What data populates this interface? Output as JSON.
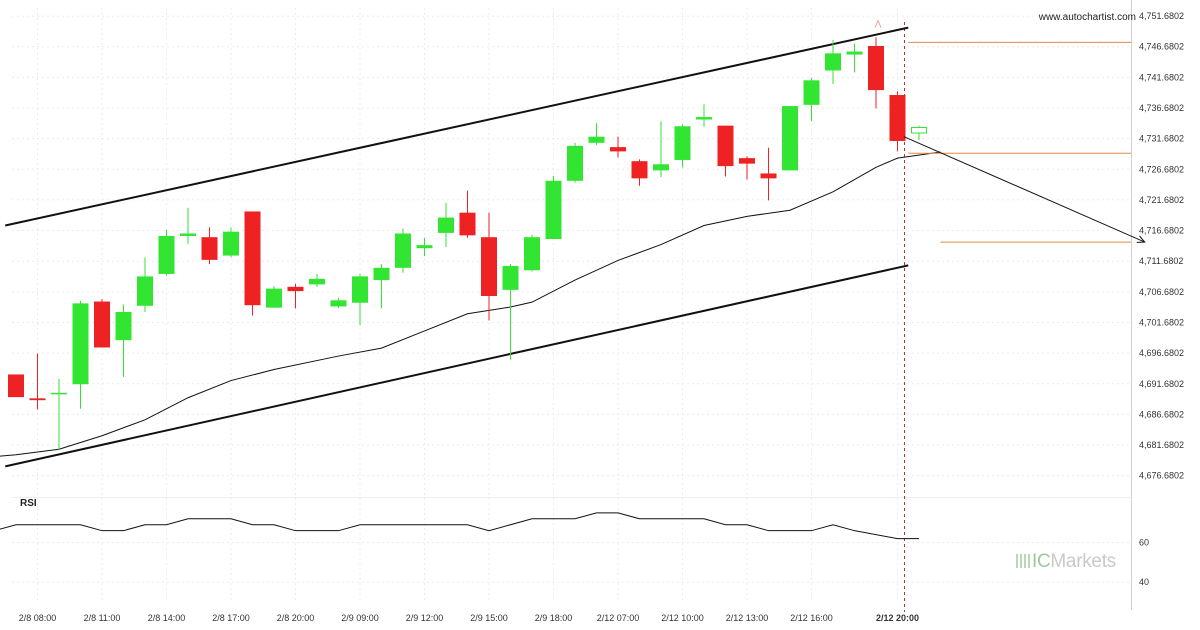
{
  "watermark": "www.autochartist.com",
  "rsi_label": "RSI",
  "brand": {
    "prefix": "IC",
    "suffix": "Markets"
  },
  "colors": {
    "up": "#33e533",
    "down": "#ee2222",
    "ma": "#111111",
    "level": "#e08a4a",
    "channel": "#111111"
  },
  "chart_data": {
    "type": "candlestick",
    "price_axis": {
      "ylim": [
        4673.2,
        4753.0
      ],
      "ticks": [
        "4,751.6802",
        "4,746.6802",
        "4,741.6802",
        "4,736.6802",
        "4,731.6802",
        "4,726.6802",
        "4,721.6802",
        "4,716.6802",
        "4,711.6802",
        "4,706.6802",
        "4,701.6802",
        "4,696.6802",
        "4,691.6802",
        "4,686.6802",
        "4,681.6802",
        "4,676.6802"
      ],
      "tick_values": [
        4751.6802,
        4746.6802,
        4741.6802,
        4736.6802,
        4731.6802,
        4726.6802,
        4721.6802,
        4716.6802,
        4711.6802,
        4706.6802,
        4701.6802,
        4696.6802,
        4691.6802,
        4686.6802,
        4681.6802,
        4676.6802
      ]
    },
    "time_axis": {
      "labels": [
        "2/8 08:00",
        "2/8 11:00",
        "2/8 14:00",
        "2/8 17:00",
        "2/8 20:00",
        "2/9 09:00",
        "2/9 12:00",
        "2/9 15:00",
        "2/9 18:00",
        "2/12 07:00",
        "2/12 10:00",
        "2/12 13:00",
        "2/12 16:00",
        "2/12 20:00"
      ],
      "label_bar_index": [
        1,
        4,
        7,
        10,
        13,
        16,
        19,
        22,
        25,
        28,
        31,
        34,
        37,
        41
      ],
      "highlight_label": "2/12 20:00"
    },
    "candles": [
      {
        "o": 4693.2,
        "h": 4693.2,
        "l": 4689.5,
        "c": 4689.5
      },
      {
        "o": 4689.3,
        "h": 4696.6,
        "l": 4687.5,
        "c": 4689.0
      },
      {
        "o": 4690.2,
        "h": 4692.5,
        "l": 4680.8,
        "c": 4690.2
      },
      {
        "o": 4691.6,
        "h": 4705.2,
        "l": 4687.6,
        "c": 4704.8
      },
      {
        "o": 4705.1,
        "h": 4705.5,
        "l": 4697.6,
        "c": 4697.6
      },
      {
        "o": 4698.8,
        "h": 4704.6,
        "l": 4692.8,
        "c": 4703.4
      },
      {
        "o": 4704.4,
        "h": 4712.3,
        "l": 4703.4,
        "c": 4709.2
      },
      {
        "o": 4709.6,
        "h": 4716.8,
        "l": 4709.3,
        "c": 4715.8
      },
      {
        "o": 4715.8,
        "h": 4720.4,
        "l": 4714.5,
        "c": 4716.2
      },
      {
        "o": 4715.6,
        "h": 4717.2,
        "l": 4711.2,
        "c": 4711.9
      },
      {
        "o": 4712.6,
        "h": 4717.2,
        "l": 4712.3,
        "c": 4716.5
      },
      {
        "o": 4719.8,
        "h": 4719.8,
        "l": 4702.8,
        "c": 4704.5
      },
      {
        "o": 4704.1,
        "h": 4707.6,
        "l": 4704.1,
        "c": 4707.2
      },
      {
        "o": 4707.5,
        "h": 4708.0,
        "l": 4704.0,
        "c": 4706.8
      },
      {
        "o": 4707.9,
        "h": 4709.6,
        "l": 4707.5,
        "c": 4708.8
      },
      {
        "o": 4704.3,
        "h": 4705.7,
        "l": 4704.0,
        "c": 4705.3
      },
      {
        "o": 4704.9,
        "h": 4709.6,
        "l": 4701.2,
        "c": 4709.2
      },
      {
        "o": 4708.6,
        "h": 4711.2,
        "l": 4704.0,
        "c": 4710.6
      },
      {
        "o": 4710.6,
        "h": 4717.0,
        "l": 4709.8,
        "c": 4716.2
      },
      {
        "o": 4713.8,
        "h": 4715.5,
        "l": 4712.5,
        "c": 4714.3
      },
      {
        "o": 4716.3,
        "h": 4721.2,
        "l": 4714.0,
        "c": 4718.8
      },
      {
        "o": 4719.6,
        "h": 4723.2,
        "l": 4715.5,
        "c": 4715.9
      },
      {
        "o": 4715.6,
        "h": 4719.6,
        "l": 4702.0,
        "c": 4706.0
      },
      {
        "o": 4707.0,
        "h": 4711.2,
        "l": 4695.6,
        "c": 4710.9
      },
      {
        "o": 4710.2,
        "h": 4716.0,
        "l": 4710.0,
        "c": 4715.6
      },
      {
        "o": 4715.3,
        "h": 4725.6,
        "l": 4715.3,
        "c": 4724.8
      },
      {
        "o": 4724.8,
        "h": 4731.0,
        "l": 4724.5,
        "c": 4730.5
      },
      {
        "o": 4731.0,
        "h": 4734.2,
        "l": 4730.6,
        "c": 4732.0
      },
      {
        "o": 4730.3,
        "h": 4732.0,
        "l": 4728.6,
        "c": 4729.6
      },
      {
        "o": 4728.0,
        "h": 4728.3,
        "l": 4724.0,
        "c": 4725.2
      },
      {
        "o": 4726.5,
        "h": 4734.5,
        "l": 4725.4,
        "c": 4727.5
      },
      {
        "o": 4728.2,
        "h": 4734.0,
        "l": 4727.0,
        "c": 4733.7
      },
      {
        "o": 4734.8,
        "h": 4737.3,
        "l": 4733.6,
        "c": 4735.2
      },
      {
        "o": 4733.8,
        "h": 4733.8,
        "l": 4725.5,
        "c": 4727.2
      },
      {
        "o": 4728.5,
        "h": 4728.8,
        "l": 4725.0,
        "c": 4727.6
      },
      {
        "o": 4726.0,
        "h": 4730.2,
        "l": 4721.6,
        "c": 4725.2
      },
      {
        "o": 4726.5,
        "h": 4737.0,
        "l": 4726.5,
        "c": 4737.0
      },
      {
        "o": 4737.2,
        "h": 4741.6,
        "l": 4734.5,
        "c": 4741.2
      },
      {
        "o": 4742.8,
        "h": 4747.8,
        "l": 4740.6,
        "c": 4745.6
      },
      {
        "o": 4745.4,
        "h": 4747.2,
        "l": 4742.5,
        "c": 4745.9
      },
      {
        "o": 4746.8,
        "h": 4748.2,
        "l": 4736.6,
        "c": 4739.6
      },
      {
        "o": 4738.8,
        "h": 4739.4,
        "l": 4729.6,
        "c": 4731.3
      },
      {
        "o": 4732.6,
        "h": 4733.8,
        "l": 4731.4,
        "c": 4733.5
      }
    ],
    "moving_average": [
      {
        "bar": -1,
        "v": 4679.8
      },
      {
        "bar": 0,
        "v": 4680.1
      },
      {
        "bar": 2,
        "v": 4681.0
      },
      {
        "bar": 4,
        "v": 4683.2
      },
      {
        "bar": 6,
        "v": 4685.8
      },
      {
        "bar": 8,
        "v": 4689.4
      },
      {
        "bar": 10,
        "v": 4692.2
      },
      {
        "bar": 12,
        "v": 4694.0
      },
      {
        "bar": 15,
        "v": 4696.2
      },
      {
        "bar": 17,
        "v": 4697.5
      },
      {
        "bar": 19,
        "v": 4700.3
      },
      {
        "bar": 21,
        "v": 4703.1
      },
      {
        "bar": 23,
        "v": 4704.2
      },
      {
        "bar": 24,
        "v": 4705.0
      },
      {
        "bar": 26,
        "v": 4708.6
      },
      {
        "bar": 28,
        "v": 4711.8
      },
      {
        "bar": 30,
        "v": 4714.4
      },
      {
        "bar": 32,
        "v": 4717.5
      },
      {
        "bar": 34,
        "v": 4719.0
      },
      {
        "bar": 36,
        "v": 4720.0
      },
      {
        "bar": 38,
        "v": 4723.0
      },
      {
        "bar": 40,
        "v": 4727.0
      },
      {
        "bar": 41,
        "v": 4728.5
      },
      {
        "bar": 43,
        "v": 4729.5
      }
    ],
    "channel": {
      "upper": {
        "x1": -0.5,
        "y1": 4717.5,
        "x2": 41.5,
        "y2": 4749.8
      },
      "lower": {
        "x1": -0.5,
        "y1": 4678.2,
        "x2": 41.5,
        "y2": 4711.0
      }
    },
    "levels": [
      {
        "value": 4747.4,
        "from_bar": 41.5
      },
      {
        "value": 4729.3,
        "from_bar": 41.5
      },
      {
        "value": 4714.8,
        "from_bar": 43
      }
    ],
    "forecast_arrow": {
      "from_bar": 41.3,
      "from_value": 4732.0,
      "to_bar": 52.5,
      "to_value": 4714.8
    },
    "rsi": {
      "ticks": [
        "60",
        "40"
      ],
      "tick_values": [
        60,
        40
      ],
      "ylim": [
        31,
        83
      ],
      "values": [
        {
          "bar": -1,
          "v": 66
        },
        {
          "bar": 0,
          "v": 69
        },
        {
          "bar": 3,
          "v": 69
        },
        {
          "bar": 4,
          "v": 66
        },
        {
          "bar": 5,
          "v": 66
        },
        {
          "bar": 6,
          "v": 69
        },
        {
          "bar": 7,
          "v": 69
        },
        {
          "bar": 8,
          "v": 72
        },
        {
          "bar": 10,
          "v": 72
        },
        {
          "bar": 11,
          "v": 69
        },
        {
          "bar": 12,
          "v": 69
        },
        {
          "bar": 13,
          "v": 66
        },
        {
          "bar": 15,
          "v": 66
        },
        {
          "bar": 16,
          "v": 69
        },
        {
          "bar": 21,
          "v": 69
        },
        {
          "bar": 22,
          "v": 66
        },
        {
          "bar": 24,
          "v": 72
        },
        {
          "bar": 26,
          "v": 72
        },
        {
          "bar": 27,
          "v": 75
        },
        {
          "bar": 28,
          "v": 75
        },
        {
          "bar": 29,
          "v": 72
        },
        {
          "bar": 32,
          "v": 72
        },
        {
          "bar": 33,
          "v": 69
        },
        {
          "bar": 34,
          "v": 69
        },
        {
          "bar": 35,
          "v": 66
        },
        {
          "bar": 37,
          "v": 66
        },
        {
          "bar": 38,
          "v": 69
        },
        {
          "bar": 39,
          "v": 66
        },
        {
          "bar": 41,
          "v": 62
        },
        {
          "bar": 42,
          "v": 62
        }
      ]
    }
  }
}
